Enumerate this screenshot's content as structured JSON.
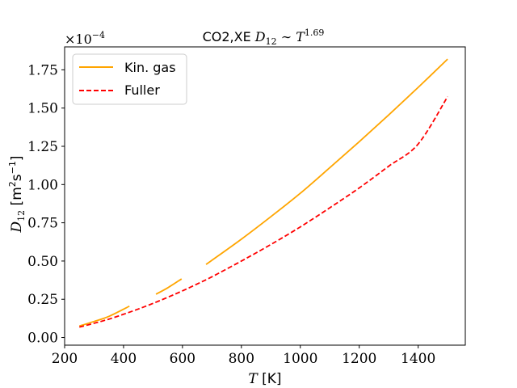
{
  "chart_data": {
    "type": "line",
    "title": "CO2,XE D₁₂ ∼ T^1.69",
    "title_parts": {
      "prefix": "CO2,XE ",
      "symbol": "D",
      "sub": "12",
      "sim": " ∼ ",
      "base": "T",
      "sup": "1.69"
    },
    "xlabel": "T [K]",
    "xlabel_parts": {
      "symbol": "T",
      "unit": " [K]"
    },
    "ylabel": "D12 [m2s-1]",
    "ylabel_parts": {
      "symbol": "D",
      "sub": "12",
      "unit_a": " [m",
      "sup_a": "2",
      "unit_b": "s",
      "sup_b": "−1",
      "unit_c": "]"
    },
    "y_scale_label": "×10^-4",
    "y_scale_parts": {
      "base": "×10",
      "sup": "−4"
    },
    "xlim": [
      200,
      1560
    ],
    "ylim": [
      -0.05,
      1.9
    ],
    "xticks": [
      200,
      400,
      600,
      800,
      1000,
      1200,
      1400
    ],
    "xtick_labels": [
      "200",
      "400",
      "600",
      "800",
      "1000",
      "1200",
      "1400"
    ],
    "yticks": [
      0.0,
      0.25,
      0.5,
      0.75,
      1.0,
      1.25,
      1.5,
      1.75
    ],
    "ytick_labels": [
      "0.00",
      "0.25",
      "0.50",
      "0.75",
      "1.00",
      "1.25",
      "1.50",
      "1.75"
    ],
    "grid": false,
    "legend_position": "top-left",
    "series": [
      {
        "name": "Kin. gas",
        "color": "#ffa500",
        "style": "solid",
        "segments": [
          {
            "x": [
              250,
              300,
              350,
              420
            ],
            "y": [
              0.075,
              0.105,
              0.138,
              0.205
            ]
          },
          {
            "x": [
              510,
              550,
              597
            ],
            "y": [
              0.283,
              0.325,
              0.383
            ]
          },
          {
            "x": [
              680,
              700,
              800,
              900,
              1000,
              1100,
              1200,
              1300,
              1400,
              1500
            ],
            "y": [
              0.478,
              0.505,
              0.643,
              0.79,
              0.943,
              1.11,
              1.28,
              1.455,
              1.635,
              1.82
            ]
          }
        ]
      },
      {
        "name": "Fuller",
        "color": "#ff0000",
        "style": "dashed",
        "segments": [
          {
            "x": [
              250,
              300,
              350,
              400,
              450,
              500,
              550,
              600,
              650,
              700,
              800,
              900,
              1000,
              1100,
              1200,
              1300,
              1400,
              1500
            ],
            "y": [
              0.068,
              0.093,
              0.12,
              0.152,
              0.186,
              0.223,
              0.263,
              0.305,
              0.35,
              0.397,
              0.5,
              0.608,
              0.723,
              0.848,
              0.978,
              1.12,
              1.265,
              1.575
            ]
          }
        ]
      }
    ]
  }
}
